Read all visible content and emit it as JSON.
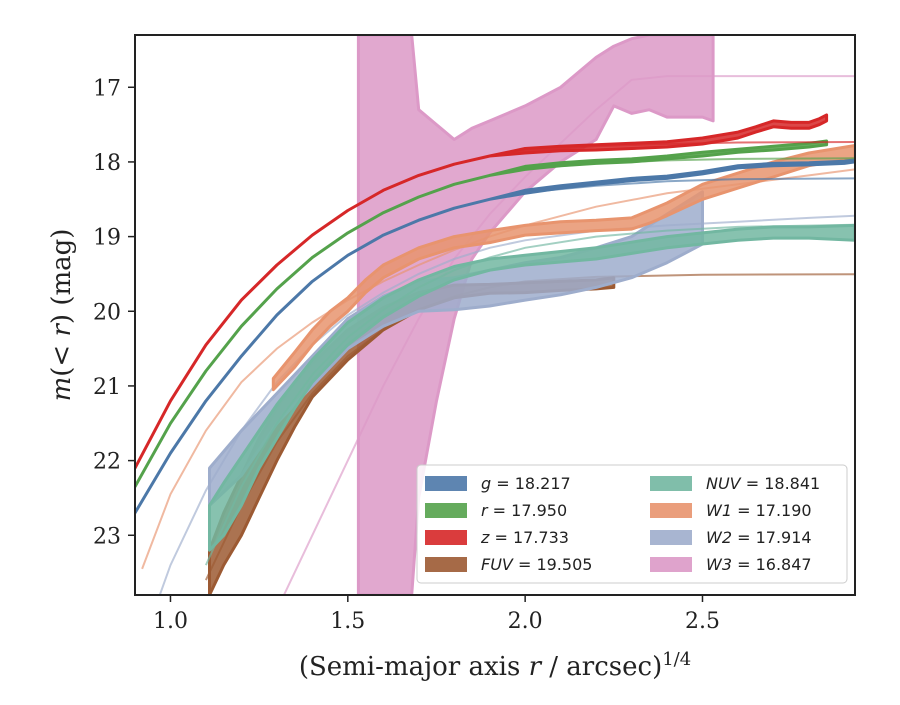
{
  "chart_data": {
    "type": "area",
    "xlabel": "(Semi-major axis r / arcsec)^1/4",
    "ylabel": "m(< r) (mag)",
    "xlim": [
      0.9,
      2.93
    ],
    "ylim": [
      23.8,
      16.3
    ],
    "y_inverted": true,
    "x_ticks": [
      1.0,
      1.5,
      2.0,
      2.5
    ],
    "y_ticks": [
      17,
      18,
      19,
      20,
      21,
      22,
      23
    ],
    "x_tick_labels": [
      "1.0",
      "1.5",
      "2.0",
      "2.5"
    ],
    "y_tick_labels": [
      "17",
      "18",
      "19",
      "20",
      "21",
      "22",
      "23"
    ],
    "grid": false,
    "legend_position": "lower-right",
    "legend_columns": 2,
    "series": [
      {
        "name": "g = 18.217",
        "label_var": "g",
        "label_val": "= 18.217",
        "color": "#4c78a8",
        "asymptote": 18.217,
        "model": [
          [
            0.9,
            22.7
          ],
          [
            1.0,
            21.9
          ],
          [
            1.1,
            21.2
          ],
          [
            1.2,
            20.6
          ],
          [
            1.3,
            20.05
          ],
          [
            1.4,
            19.6
          ],
          [
            1.5,
            19.25
          ],
          [
            1.6,
            18.98
          ],
          [
            1.7,
            18.78
          ],
          [
            1.8,
            18.62
          ],
          [
            1.9,
            18.5
          ],
          [
            2.0,
            18.41
          ],
          [
            2.2,
            18.32
          ],
          [
            2.4,
            18.26
          ],
          [
            2.6,
            18.23
          ],
          [
            2.93,
            18.22
          ]
        ],
        "data_x": [
          0.9,
          1.0,
          1.1,
          1.2,
          1.3,
          1.4,
          1.5,
          1.6,
          1.7,
          1.8,
          1.9,
          2.0,
          2.1,
          2.2,
          2.3,
          2.4,
          2.5,
          2.6,
          2.7,
          2.8,
          2.9,
          2.93
        ],
        "data_lo": [
          22.7,
          21.9,
          21.2,
          20.6,
          20.05,
          19.6,
          19.25,
          18.98,
          18.78,
          18.62,
          18.5,
          18.42,
          18.35,
          18.3,
          18.25,
          18.22,
          18.16,
          18.08,
          18.05,
          18.04,
          18.02,
          18.0
        ],
        "data_hi": [
          22.7,
          21.9,
          21.2,
          20.6,
          20.05,
          19.6,
          19.25,
          18.98,
          18.78,
          18.62,
          18.5,
          18.38,
          18.32,
          18.27,
          18.22,
          18.19,
          18.13,
          18.05,
          18.02,
          18.01,
          17.99,
          17.97
        ]
      },
      {
        "name": "r = 17.950",
        "label_var": "r",
        "label_val": "= 17.950",
        "color": "#54a24b",
        "asymptote": 17.95,
        "model": [
          [
            0.9,
            22.35
          ],
          [
            1.0,
            21.5
          ],
          [
            1.1,
            20.8
          ],
          [
            1.2,
            20.2
          ],
          [
            1.3,
            19.7
          ],
          [
            1.4,
            19.28
          ],
          [
            1.5,
            18.95
          ],
          [
            1.6,
            18.68
          ],
          [
            1.7,
            18.47
          ],
          [
            1.8,
            18.3
          ],
          [
            1.9,
            18.18
          ],
          [
            2.0,
            18.09
          ],
          [
            2.2,
            18.02
          ],
          [
            2.4,
            17.98
          ],
          [
            2.6,
            17.96
          ],
          [
            2.93,
            17.95
          ]
        ],
        "data_x": [
          0.9,
          1.0,
          1.1,
          1.2,
          1.3,
          1.4,
          1.5,
          1.6,
          1.7,
          1.8,
          1.9,
          2.0,
          2.1,
          2.2,
          2.3,
          2.4,
          2.5,
          2.6,
          2.7,
          2.8,
          2.85
        ],
        "data_lo": [
          22.35,
          21.5,
          20.8,
          20.2,
          19.7,
          19.28,
          18.95,
          18.68,
          18.47,
          18.3,
          18.18,
          18.1,
          18.05,
          18.02,
          18.0,
          17.96,
          17.92,
          17.87,
          17.84,
          17.8,
          17.77
        ],
        "data_hi": [
          22.35,
          21.5,
          20.8,
          20.2,
          19.7,
          19.28,
          18.95,
          18.68,
          18.47,
          18.3,
          18.18,
          18.06,
          18.01,
          17.98,
          17.96,
          17.92,
          17.87,
          17.83,
          17.79,
          17.75,
          17.72
        ]
      },
      {
        "name": "z = 17.733",
        "label_var": "z",
        "label_val": "= 17.733",
        "color": "#d62728",
        "asymptote": 17.733,
        "model": [
          [
            0.9,
            22.1
          ],
          [
            1.0,
            21.2
          ],
          [
            1.1,
            20.45
          ],
          [
            1.2,
            19.85
          ],
          [
            1.3,
            19.38
          ],
          [
            1.4,
            18.98
          ],
          [
            1.5,
            18.65
          ],
          [
            1.6,
            18.38
          ],
          [
            1.7,
            18.18
          ],
          [
            1.8,
            18.03
          ],
          [
            1.9,
            17.92
          ],
          [
            2.0,
            17.85
          ],
          [
            2.2,
            17.79
          ],
          [
            2.4,
            17.76
          ],
          [
            2.6,
            17.74
          ],
          [
            2.93,
            17.733
          ]
        ],
        "data_x": [
          0.9,
          1.0,
          1.1,
          1.2,
          1.3,
          1.4,
          1.5,
          1.6,
          1.7,
          1.8,
          1.9,
          2.0,
          2.1,
          2.2,
          2.3,
          2.4,
          2.5,
          2.6,
          2.65,
          2.7,
          2.75,
          2.8,
          2.83,
          2.85
        ],
        "data_lo": [
          22.1,
          21.2,
          20.45,
          19.85,
          19.38,
          18.98,
          18.65,
          18.38,
          18.18,
          18.03,
          17.92,
          17.88,
          17.85,
          17.84,
          17.82,
          17.8,
          17.76,
          17.68,
          17.6,
          17.53,
          17.55,
          17.55,
          17.5,
          17.45
        ],
        "data_hi": [
          22.1,
          21.2,
          20.45,
          19.85,
          19.38,
          18.98,
          18.65,
          18.38,
          18.18,
          18.03,
          17.92,
          17.82,
          17.79,
          17.77,
          17.75,
          17.73,
          17.68,
          17.6,
          17.53,
          17.45,
          17.47,
          17.47,
          17.42,
          17.37
        ]
      },
      {
        "name": "FUV = 19.505",
        "label_var": "FUV",
        "label_val": "= 19.505",
        "color": "#9c5a33",
        "asymptote": 19.505,
        "model": [
          [
            1.1,
            23.6
          ],
          [
            1.2,
            22.6
          ],
          [
            1.3,
            21.75
          ],
          [
            1.4,
            21.1
          ],
          [
            1.5,
            20.6
          ],
          [
            1.6,
            20.25
          ],
          [
            1.7,
            19.98
          ],
          [
            1.8,
            19.8
          ],
          [
            1.9,
            19.68
          ],
          [
            2.0,
            19.6
          ],
          [
            2.2,
            19.54
          ],
          [
            2.5,
            19.51
          ],
          [
            2.93,
            19.505
          ]
        ],
        "data_x": [
          1.11,
          1.15,
          1.2,
          1.25,
          1.3,
          1.35,
          1.4,
          1.5,
          1.6,
          1.7,
          1.8,
          1.9,
          2.0,
          2.1,
          2.2,
          2.25
        ],
        "data_lo": [
          23.8,
          23.4,
          23.0,
          22.5,
          22.0,
          21.55,
          21.15,
          20.65,
          20.25,
          19.98,
          19.82,
          19.76,
          19.75,
          19.72,
          19.7,
          19.68
        ],
        "data_hi": [
          23.2,
          22.7,
          22.2,
          21.7,
          21.3,
          20.95,
          20.7,
          20.25,
          19.95,
          19.75,
          19.65,
          19.64,
          19.62,
          19.6,
          19.58,
          19.55
        ]
      },
      {
        "name": "NUV = 18.841",
        "label_var": "NUV",
        "label_val": "= 18.841",
        "color": "#72b7a1",
        "asymptote": 18.841,
        "model": [
          [
            1.1,
            23.4
          ],
          [
            1.2,
            22.35
          ],
          [
            1.3,
            21.5
          ],
          [
            1.4,
            20.85
          ],
          [
            1.5,
            20.35
          ],
          [
            1.6,
            19.98
          ],
          [
            1.7,
            19.68
          ],
          [
            1.8,
            19.45
          ],
          [
            1.9,
            19.28
          ],
          [
            2.0,
            19.15
          ],
          [
            2.2,
            19.0
          ],
          [
            2.4,
            18.92
          ],
          [
            2.6,
            18.87
          ],
          [
            2.93,
            18.841
          ]
        ],
        "data_x": [
          1.11,
          1.15,
          1.2,
          1.25,
          1.3,
          1.35,
          1.4,
          1.5,
          1.6,
          1.7,
          1.8,
          1.9,
          2.0,
          2.2,
          2.4,
          2.6,
          2.7,
          2.8,
          2.93
        ],
        "data_lo": [
          23.2,
          23.0,
          22.6,
          22.1,
          21.7,
          21.3,
          20.95,
          20.45,
          20.08,
          19.8,
          19.58,
          19.45,
          19.38,
          19.3,
          19.15,
          19.05,
          19.02,
          19.02,
          19.05
        ],
        "data_hi": [
          22.6,
          22.3,
          21.95,
          21.6,
          21.25,
          20.95,
          20.65,
          20.15,
          19.82,
          19.58,
          19.4,
          19.3,
          19.25,
          19.15,
          19.0,
          18.9,
          18.87,
          18.87,
          18.85
        ]
      },
      {
        "name": "W1 = 17.190",
        "label_var": "W1",
        "label_val": "= 17.190",
        "color": "#e8946e",
        "asymptote": 17.19,
        "model": [
          [
            0.92,
            23.45
          ],
          [
            1.0,
            22.45
          ],
          [
            1.1,
            21.6
          ],
          [
            1.2,
            20.95
          ],
          [
            1.3,
            20.5
          ],
          [
            1.4,
            20.15
          ],
          [
            1.5,
            19.85
          ],
          [
            1.6,
            19.6
          ],
          [
            1.7,
            19.38
          ],
          [
            1.8,
            19.18
          ],
          [
            1.9,
            19.0
          ],
          [
            2.0,
            18.85
          ],
          [
            2.2,
            18.6
          ],
          [
            2.4,
            18.42
          ],
          [
            2.6,
            18.3
          ],
          [
            2.8,
            18.18
          ],
          [
            2.93,
            18.1
          ]
        ],
        "data_x": [
          1.29,
          1.35,
          1.4,
          1.45,
          1.5,
          1.55,
          1.6,
          1.7,
          1.8,
          1.9,
          2.0,
          2.1,
          2.2,
          2.3,
          2.35,
          2.4,
          2.5,
          2.6,
          2.7,
          2.8,
          2.93
        ],
        "data_lo": [
          21.05,
          20.75,
          20.45,
          20.2,
          20.0,
          19.75,
          19.55,
          19.3,
          19.15,
          19.08,
          18.98,
          18.95,
          18.92,
          18.9,
          18.82,
          18.72,
          18.5,
          18.35,
          18.2,
          18.05,
          17.95
        ],
        "data_hi": [
          20.9,
          20.55,
          20.25,
          20.0,
          19.82,
          19.58,
          19.38,
          19.15,
          19.0,
          18.92,
          18.85,
          18.8,
          18.78,
          18.75,
          18.65,
          18.55,
          18.3,
          18.15,
          18.0,
          17.88,
          17.78
        ]
      },
      {
        "name": "W2 = 17.914",
        "label_var": "W2",
        "label_val": "= 17.914",
        "color": "#9eadcc",
        "asymptote": 17.914,
        "model": [
          [
            0.97,
            23.8
          ],
          [
            1.0,
            23.4
          ],
          [
            1.1,
            22.4
          ],
          [
            1.2,
            21.6
          ],
          [
            1.3,
            20.95
          ],
          [
            1.4,
            20.45
          ],
          [
            1.5,
            20.05
          ],
          [
            1.6,
            19.75
          ],
          [
            1.7,
            19.5
          ],
          [
            1.8,
            19.3
          ],
          [
            1.9,
            19.15
          ],
          [
            2.0,
            19.05
          ],
          [
            2.2,
            18.92
          ],
          [
            2.4,
            18.85
          ],
          [
            2.6,
            18.8
          ],
          [
            2.8,
            18.75
          ],
          [
            2.93,
            18.72
          ]
        ],
        "data_x": [
          1.11,
          1.2,
          1.3,
          1.4,
          1.5,
          1.6,
          1.7,
          1.8,
          1.9,
          2.0,
          2.1,
          2.2,
          2.3,
          2.4,
          2.5
        ],
        "data_lo": [
          22.6,
          22.2,
          21.5,
          21.0,
          20.5,
          20.2,
          20.0,
          19.98,
          19.93,
          19.85,
          19.78,
          19.68,
          19.55,
          19.35,
          19.1
        ],
        "data_hi": [
          22.1,
          21.6,
          21.1,
          20.6,
          20.1,
          19.8,
          19.6,
          19.55,
          19.45,
          19.35,
          19.28,
          19.15,
          19.0,
          18.7,
          18.4
        ]
      },
      {
        "name": "W3 = 16.847",
        "label_var": "W3",
        "label_val": "= 16.847",
        "color": "#dc99c7",
        "asymptote": 16.847,
        "model": [
          [
            1.3,
            24.0
          ],
          [
            1.4,
            23.0
          ],
          [
            1.5,
            22.0
          ],
          [
            1.6,
            21.0
          ],
          [
            1.7,
            20.1
          ],
          [
            1.8,
            19.3
          ],
          [
            1.9,
            18.7
          ],
          [
            2.0,
            18.2
          ],
          [
            2.1,
            17.75
          ],
          [
            2.2,
            17.3
          ],
          [
            2.3,
            16.9
          ],
          [
            2.4,
            16.85
          ],
          [
            2.93,
            16.85
          ]
        ],
        "data_x": [
          1.53,
          1.55,
          1.6,
          1.65,
          1.68,
          1.7,
          1.75,
          1.8,
          1.85,
          1.9,
          2.0,
          2.1,
          2.2,
          2.25,
          2.3,
          2.35,
          2.4,
          2.45,
          2.5,
          2.53
        ],
        "data_lo": [
          23.8,
          23.8,
          23.8,
          23.8,
          23.8,
          22.5,
          21.2,
          20.1,
          19.3,
          18.95,
          18.4,
          18.0,
          17.7,
          17.25,
          17.35,
          17.3,
          17.4,
          17.4,
          17.4,
          17.45
        ],
        "data_hi": [
          16.3,
          16.3,
          16.3,
          16.3,
          16.3,
          17.3,
          17.5,
          17.7,
          17.55,
          17.45,
          17.25,
          17.0,
          16.6,
          16.45,
          16.35,
          16.3,
          16.3,
          16.3,
          16.3,
          16.3
        ]
      }
    ]
  }
}
